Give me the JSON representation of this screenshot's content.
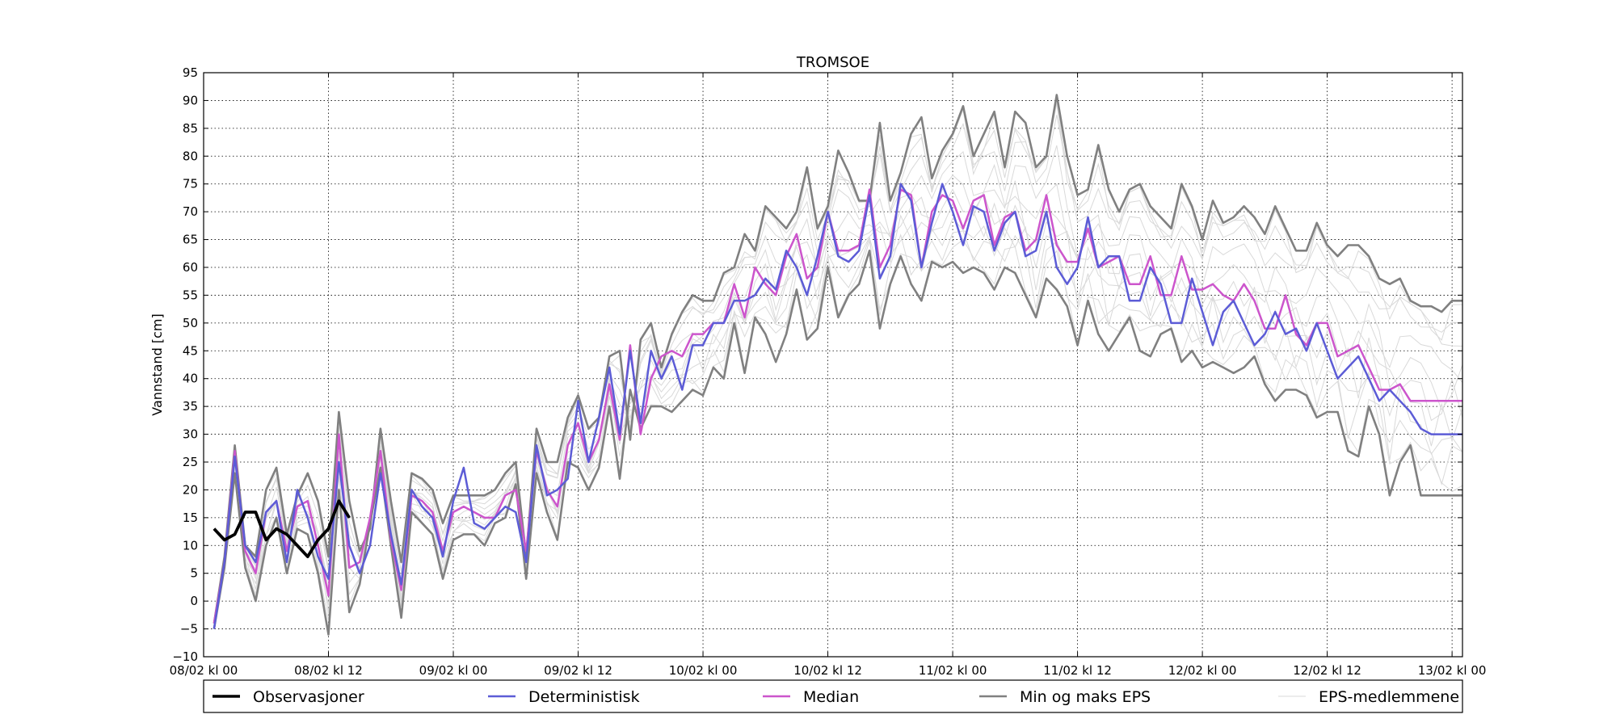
{
  "chart_data": {
    "type": "line",
    "title": "TROMSOE",
    "xlabel": "",
    "ylabel": "Vannstand [cm]",
    "ylim": [
      -10,
      95
    ],
    "yticks": [
      -10,
      -5,
      0,
      5,
      10,
      15,
      20,
      25,
      30,
      35,
      40,
      45,
      50,
      55,
      60,
      65,
      70,
      75,
      80,
      85,
      90,
      95
    ],
    "xlim_hours": [
      0,
      121
    ],
    "xticks": [
      {
        "hour": 0,
        "label": "08/02 kl 00"
      },
      {
        "hour": 12,
        "label": "08/02 kl 12"
      },
      {
        "hour": 24,
        "label": "09/02 kl 00"
      },
      {
        "hour": 36,
        "label": "09/02 kl 12"
      },
      {
        "hour": 48,
        "label": "10/02 kl 00"
      },
      {
        "hour": 60,
        "label": "10/02 kl 12"
      },
      {
        "hour": 72,
        "label": "11/02 kl 00"
      },
      {
        "hour": 84,
        "label": "11/02 kl 12"
      },
      {
        "hour": 96,
        "label": "12/02 kl 00"
      },
      {
        "hour": 108,
        "label": "12/02 kl 12"
      },
      {
        "hour": 120,
        "label": "13/02 kl 00"
      }
    ],
    "grid": true,
    "legend_placement": "bottom",
    "legend": [
      {
        "name": "Observasjoner",
        "color": "#000000",
        "width": 3.5
      },
      {
        "name": "Deterministisk",
        "color": "#5c5cd6",
        "width": 2.5
      },
      {
        "name": "Median",
        "color": "#cc55cc",
        "width": 2.5
      },
      {
        "name": "Min og maks EPS",
        "color": "#808080",
        "width": 2.5
      },
      {
        "name": "EPS-medlemmene",
        "color": "#d9d9d9",
        "width": 1
      }
    ],
    "series": [
      {
        "name": "Observasjoner",
        "color": "#000000",
        "x": [
          1,
          2,
          3,
          4,
          5,
          6,
          7,
          8,
          9,
          10,
          11,
          12,
          13,
          14
        ],
        "y": [
          13,
          11,
          12,
          16,
          16,
          11,
          13,
          12,
          10,
          8,
          11,
          13,
          18,
          15
        ]
      },
      {
        "name": "Deterministisk",
        "color": "#5c5cd6",
        "x": [
          1,
          2,
          3,
          4,
          5,
          6,
          7,
          8,
          9,
          10,
          11,
          12,
          13,
          14,
          15,
          16,
          17,
          18,
          19,
          20,
          21,
          22,
          23,
          24,
          25,
          26,
          27,
          28,
          29,
          30,
          31,
          32,
          33,
          34,
          35,
          36,
          37,
          38,
          39,
          40,
          41,
          42,
          43,
          44,
          45,
          46,
          47,
          48,
          49,
          50,
          51,
          52,
          53,
          54,
          55,
          56,
          57,
          58,
          59,
          60,
          61,
          62,
          63,
          64,
          65,
          66,
          67,
          68,
          69,
          70,
          71,
          72,
          73,
          74,
          75,
          76,
          77,
          78,
          79,
          80,
          81,
          82,
          83,
          84,
          85,
          86,
          87,
          88,
          89,
          90,
          91,
          92,
          93,
          94,
          95,
          96,
          97,
          98,
          99,
          100,
          101,
          102,
          103,
          104,
          105,
          106,
          107,
          108,
          109,
          110,
          111,
          112,
          113,
          114,
          115,
          116,
          117,
          118,
          119,
          120,
          121
        ],
        "y": [
          -5,
          7,
          26,
          10,
          7,
          16,
          18,
          7,
          20,
          15,
          8,
          4,
          25,
          10,
          5,
          10,
          23,
          12,
          3,
          20,
          17,
          15,
          8,
          18,
          24,
          14,
          13,
          15,
          17,
          16,
          7,
          28,
          19,
          20,
          22,
          36,
          25,
          33,
          42,
          30,
          45,
          32,
          45,
          40,
          44,
          38,
          46,
          46,
          50,
          50,
          54,
          54,
          55,
          58,
          56,
          63,
          60,
          55,
          62,
          70,
          62,
          61,
          63,
          73,
          58,
          62,
          75,
          72,
          60,
          68,
          75,
          70,
          64,
          71,
          70,
          63,
          68,
          70,
          62,
          63,
          70,
          60,
          57,
          60,
          69,
          60,
          62,
          62,
          54,
          54,
          60,
          57,
          50,
          50,
          58,
          52,
          46,
          52,
          54,
          50,
          46,
          48,
          52,
          48,
          49,
          45,
          50,
          45,
          40,
          42,
          44,
          40,
          36,
          38,
          36,
          34,
          31,
          30,
          30,
          30,
          30
        ]
      },
      {
        "name": "Median",
        "color": "#cc55cc",
        "x": [
          1,
          2,
          3,
          4,
          5,
          6,
          7,
          8,
          9,
          10,
          11,
          12,
          13,
          14,
          15,
          16,
          17,
          18,
          19,
          20,
          21,
          22,
          23,
          24,
          25,
          26,
          27,
          28,
          29,
          30,
          31,
          32,
          33,
          34,
          35,
          36,
          37,
          38,
          39,
          40,
          41,
          42,
          43,
          44,
          45,
          46,
          47,
          48,
          49,
          50,
          51,
          52,
          53,
          54,
          55,
          56,
          57,
          58,
          59,
          60,
          61,
          62,
          63,
          64,
          65,
          66,
          67,
          68,
          69,
          70,
          71,
          72,
          73,
          74,
          75,
          76,
          77,
          78,
          79,
          80,
          81,
          82,
          83,
          84,
          85,
          86,
          87,
          88,
          89,
          90,
          91,
          92,
          93,
          94,
          95,
          96,
          97,
          98,
          99,
          100,
          101,
          102,
          103,
          104,
          105,
          106,
          107,
          108,
          109,
          110,
          111,
          112,
          113,
          114,
          115,
          116,
          117,
          118,
          119,
          120,
          121
        ],
        "y": [
          -4,
          7,
          27,
          9,
          5,
          16,
          18,
          9,
          17,
          18,
          10,
          1,
          30,
          6,
          7,
          15,
          27,
          11,
          2,
          19,
          18,
          16,
          9,
          16,
          17,
          16,
          15,
          15,
          19,
          20,
          9,
          27,
          20,
          17,
          28,
          32,
          25,
          29,
          39,
          29,
          46,
          30,
          40,
          44,
          45,
          44,
          48,
          48,
          50,
          50,
          57,
          51,
          60,
          57,
          55,
          62,
          66,
          58,
          60,
          70,
          63,
          63,
          64,
          74,
          60,
          64,
          74,
          73,
          60,
          70,
          73,
          72,
          67,
          72,
          73,
          64,
          69,
          70,
          63,
          65,
          73,
          64,
          61,
          61,
          67,
          60,
          61,
          62,
          57,
          57,
          62,
          55,
          55,
          62,
          56,
          56,
          57,
          55,
          54,
          57,
          54,
          49,
          49,
          55,
          48,
          46,
          50,
          50,
          44,
          45,
          46,
          42,
          38,
          38,
          39,
          36,
          36,
          36,
          36,
          36,
          36
        ]
      },
      {
        "name": "Min EPS",
        "color": "#808080",
        "x": [
          1,
          2,
          3,
          4,
          5,
          6,
          7,
          8,
          9,
          10,
          11,
          12,
          13,
          14,
          15,
          16,
          17,
          18,
          19,
          20,
          21,
          22,
          23,
          24,
          25,
          26,
          27,
          28,
          29,
          30,
          31,
          32,
          33,
          34,
          35,
          36,
          37,
          38,
          39,
          40,
          41,
          42,
          43,
          44,
          45,
          46,
          47,
          48,
          49,
          50,
          51,
          52,
          53,
          54,
          55,
          56,
          57,
          58,
          59,
          60,
          61,
          62,
          63,
          64,
          65,
          66,
          67,
          68,
          69,
          70,
          71,
          72,
          73,
          74,
          75,
          76,
          77,
          78,
          79,
          80,
          81,
          82,
          83,
          84,
          85,
          86,
          87,
          88,
          89,
          90,
          91,
          92,
          93,
          94,
          95,
          96,
          97,
          98,
          99,
          100,
          101,
          102,
          103,
          104,
          105,
          106,
          107,
          108,
          109,
          110,
          111,
          112,
          113,
          114,
          115,
          116,
          117,
          118,
          119,
          120,
          121
        ],
        "y": [
          -5,
          6,
          23,
          6,
          0,
          10,
          15,
          5,
          13,
          12,
          5,
          -6,
          20,
          -2,
          3,
          14,
          24,
          10,
          -3,
          16,
          14,
          12,
          4,
          11,
          12,
          12,
          10,
          14,
          15,
          21,
          4,
          23,
          16,
          11,
          25,
          24,
          20,
          24,
          35,
          22,
          38,
          31,
          35,
          35,
          34,
          36,
          38,
          37,
          42,
          40,
          50,
          41,
          51,
          48,
          43,
          48,
          56,
          47,
          49,
          60,
          51,
          55,
          57,
          63,
          49,
          57,
          62,
          57,
          54,
          61,
          60,
          61,
          59,
          60,
          59,
          56,
          60,
          59,
          55,
          51,
          58,
          56,
          53,
          46,
          54,
          48,
          45,
          48,
          51,
          45,
          44,
          48,
          49,
          43,
          45,
          42,
          43,
          42,
          41,
          42,
          44,
          39,
          36,
          38,
          38,
          37,
          33,
          34,
          34,
          27,
          26,
          35,
          30,
          19,
          25,
          28,
          19,
          19,
          19,
          19,
          19
        ]
      },
      {
        "name": "Max EPS",
        "color": "#808080",
        "x": [
          1,
          2,
          3,
          4,
          5,
          6,
          7,
          8,
          9,
          10,
          11,
          12,
          13,
          14,
          15,
          16,
          17,
          18,
          19,
          20,
          21,
          22,
          23,
          24,
          25,
          26,
          27,
          28,
          29,
          30,
          31,
          32,
          33,
          34,
          35,
          36,
          37,
          38,
          39,
          40,
          41,
          42,
          43,
          44,
          45,
          46,
          47,
          48,
          49,
          50,
          51,
          52,
          53,
          54,
          55,
          56,
          57,
          58,
          59,
          60,
          61,
          62,
          63,
          64,
          65,
          66,
          67,
          68,
          69,
          70,
          71,
          72,
          73,
          74,
          75,
          76,
          77,
          78,
          79,
          80,
          81,
          82,
          83,
          84,
          85,
          86,
          87,
          88,
          89,
          90,
          91,
          92,
          93,
          94,
          95,
          96,
          97,
          98,
          99,
          100,
          101,
          102,
          103,
          104,
          105,
          106,
          107,
          108,
          109,
          110,
          111,
          112,
          113,
          114,
          115,
          116,
          117,
          118,
          119,
          120,
          121
        ],
        "y": [
          -4,
          8,
          28,
          10,
          8,
          20,
          24,
          12,
          19,
          23,
          18,
          8,
          34,
          18,
          9,
          13,
          31,
          18,
          7,
          23,
          22,
          20,
          14,
          19,
          19,
          19,
          19,
          20,
          23,
          25,
          8,
          31,
          25,
          25,
          33,
          37,
          31,
          33,
          44,
          45,
          29,
          47,
          50,
          42,
          48,
          52,
          55,
          54,
          54,
          59,
          60,
          66,
          63,
          71,
          69,
          67,
          70,
          78,
          67,
          71,
          81,
          77,
          72,
          72,
          86,
          72,
          77,
          84,
          87,
          76,
          81,
          84,
          89,
          80,
          84,
          88,
          78,
          88,
          86,
          78,
          80,
          91,
          80,
          73,
          74,
          82,
          74,
          70,
          74,
          75,
          71,
          69,
          67,
          75,
          71,
          65,
          72,
          68,
          69,
          71,
          69,
          66,
          71,
          67,
          63,
          63,
          68,
          64,
          62,
          64,
          64,
          62,
          58,
          57,
          58,
          54,
          53,
          53,
          52,
          54,
          54
        ]
      }
    ]
  }
}
